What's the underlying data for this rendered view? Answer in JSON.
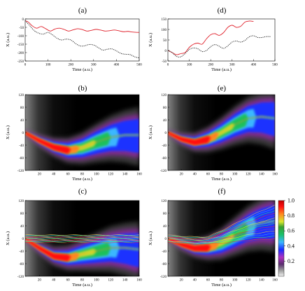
{
  "chart_data": [
    {
      "panel": "(a)",
      "type": "line",
      "xlabel": "Time (a.u.)",
      "ylabel": "X (a.u.)",
      "xlim": [
        0,
        500
      ],
      "ylim": [
        -250,
        0
      ],
      "xticks": [
        "0",
        "100",
        "200",
        "300",
        "400",
        "500"
      ],
      "yticks": [
        "0",
        "-50",
        "-100",
        "-150",
        "-200",
        "-250"
      ],
      "series": [
        {
          "style": "solid",
          "color": "#e0202a",
          "x": [
            0,
            15,
            30,
            50,
            70,
            90,
            110,
            130,
            150,
            170,
            190,
            210,
            230,
            250,
            270,
            290,
            310,
            330,
            350,
            370,
            390,
            410,
            430,
            450,
            470,
            490,
            500
          ],
          "y": [
            -10,
            -20,
            -40,
            -55,
            -45,
            -58,
            -72,
            -60,
            -55,
            -62,
            -72,
            -65,
            -58,
            -63,
            -72,
            -68,
            -62,
            -66,
            -72,
            -70,
            -66,
            -70,
            -76,
            -74,
            -78,
            -80,
            -80
          ]
        },
        {
          "style": "dotted",
          "color": "#222222",
          "x": [
            0,
            20,
            40,
            60,
            80,
            100,
            120,
            140,
            160,
            180,
            200,
            220,
            240,
            260,
            280,
            300,
            320,
            340,
            360,
            380,
            400,
            420,
            440,
            460,
            480,
            500
          ],
          "y": [
            -10,
            -40,
            -70,
            -85,
            -90,
            -80,
            -95,
            -115,
            -125,
            -120,
            -125,
            -145,
            -160,
            -160,
            -152,
            -155,
            -170,
            -185,
            -180,
            -178,
            -190,
            -205,
            -210,
            -212,
            -225,
            -232
          ]
        }
      ]
    },
    {
      "panel": "(d)",
      "type": "line",
      "xlabel": "Time (a.u.)",
      "ylabel": "X (a.u.)",
      "xlim": [
        0,
        500
      ],
      "ylim": [
        -50,
        150
      ],
      "xticks": [
        "0",
        "100",
        "200",
        "300",
        "400",
        "500"
      ],
      "yticks": [
        "-50",
        "0",
        "50",
        "100",
        "150"
      ],
      "series": [
        {
          "style": "solid",
          "color": "#e0202a",
          "x": [
            0,
            20,
            40,
            60,
            80,
            100,
            120,
            140,
            160,
            180,
            200,
            220,
            240,
            260,
            280,
            300,
            320,
            340,
            360,
            380,
            400
          ],
          "y": [
            0,
            -10,
            -20,
            -15,
            -10,
            15,
            30,
            35,
            30,
            55,
            75,
            80,
            72,
            85,
            110,
            120,
            110,
            115,
            135,
            140,
            138
          ]
        },
        {
          "style": "dotted",
          "color": "#222222",
          "x": [
            0,
            20,
            40,
            60,
            80,
            100,
            120,
            140,
            160,
            180,
            200,
            220,
            240,
            260,
            280,
            300,
            320,
            340,
            360,
            380,
            400,
            420,
            440,
            460,
            480
          ],
          "y": [
            0,
            -10,
            -28,
            -30,
            -15,
            5,
            12,
            8,
            -5,
            0,
            18,
            28,
            20,
            10,
            22,
            40,
            45,
            40,
            48,
            65,
            70,
            62,
            62,
            66,
            66
          ]
        }
      ]
    },
    {
      "panel": "(b)",
      "type": "heatmap",
      "xlabel": "Time (a.u.)",
      "ylabel": "X (a.u.)",
      "xlim": [
        0,
        160
      ],
      "ylim": [
        -120,
        120
      ],
      "xticks": [
        "20",
        "40",
        "60",
        "80",
        "100",
        "120",
        "140",
        "160"
      ],
      "yticks": [
        "120",
        "80",
        "40",
        "0",
        "-40",
        "-80",
        "-120"
      ],
      "track": {
        "t": [
          0,
          20,
          40,
          60,
          80,
          100,
          120,
          140,
          160
        ],
        "x": [
          0,
          -25,
          -45,
          -55,
          -48,
          -30,
          -15,
          -8,
          -8
        ]
      }
    },
    {
      "panel": "(e)",
      "type": "heatmap",
      "xlabel": "Time (a.u.)",
      "ylabel": "X (a.u.)",
      "xlim": [
        0,
        160
      ],
      "ylim": [
        -120,
        120
      ],
      "xticks": [
        "20",
        "40",
        "60",
        "80",
        "100",
        "120",
        "140",
        "160"
      ],
      "yticks": [
        "120",
        "80",
        "40",
        "0",
        "-40",
        "-80",
        "-120"
      ],
      "track": {
        "t": [
          0,
          20,
          40,
          60,
          80,
          100,
          120,
          140,
          160
        ],
        "x": [
          0,
          -20,
          -30,
          -20,
          0,
          25,
          45,
          50,
          45
        ]
      }
    },
    {
      "panel": "(c)",
      "type": "heatmap",
      "xlabel": "Time (a.u.)",
      "ylabel": "X (a.u.)",
      "xlim": [
        0,
        160
      ],
      "ylim": [
        -120,
        120
      ],
      "xticks": [
        "20",
        "40",
        "60",
        "80",
        "100",
        "120",
        "140",
        "160"
      ],
      "yticks": [
        "120",
        "80",
        "40",
        "0",
        "-40",
        "-80",
        "-120"
      ],
      "track": {
        "t": [
          0,
          20,
          40,
          60,
          80,
          100,
          120,
          140,
          160
        ],
        "x": [
          0,
          -30,
          -55,
          -60,
          -50,
          -40,
          -30,
          -30,
          -35
        ]
      }
    },
    {
      "panel": "(f)",
      "type": "heatmap",
      "xlabel": "Time (a.u.)",
      "ylabel": "X (a.u.)",
      "xlim": [
        0,
        160
      ],
      "ylim": [
        -120,
        120
      ],
      "xticks": [
        "20",
        "40",
        "60",
        "80",
        "100",
        "120",
        "140",
        "160"
      ],
      "yticks": [
        "120",
        "80",
        "40",
        "0",
        "-40",
        "-80",
        "-120"
      ],
      "track": {
        "t": [
          0,
          20,
          40,
          60,
          80,
          100,
          120,
          140,
          160
        ],
        "x": [
          0,
          -18,
          -30,
          -28,
          -15,
          10,
          35,
          50,
          55
        ]
      }
    },
    {
      "type": "colorbar",
      "ticks": [
        "1.0",
        "0.8",
        "0.6",
        "0.4",
        "0.2"
      ],
      "range": [
        0,
        1
      ]
    }
  ]
}
